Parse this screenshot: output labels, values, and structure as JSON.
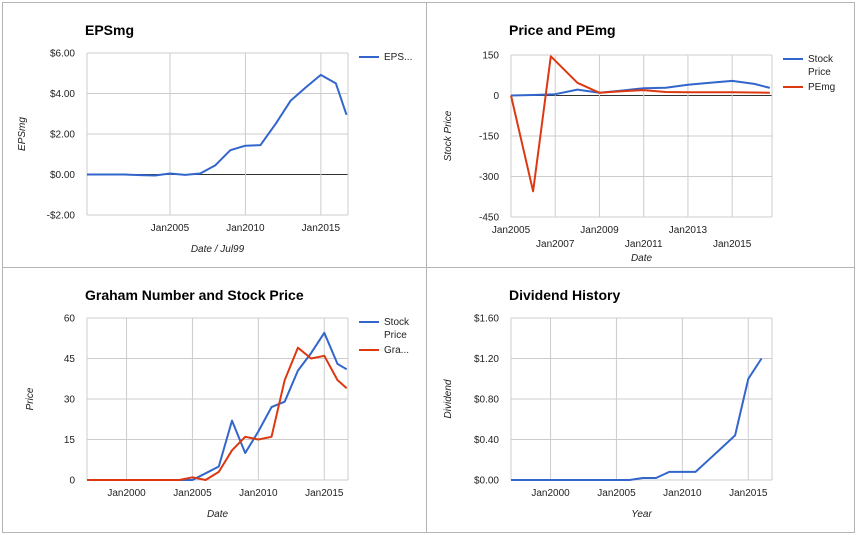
{
  "chart_data": [
    {
      "type": "line",
      "title": "EPSmg",
      "xlabel": "Date / Jul99",
      "ylabel": "EPSmg",
      "xlim": [
        1999.5,
        2016.8
      ],
      "ylim": [
        -2,
        6
      ],
      "yticks": [
        -2,
        0,
        2,
        4,
        6
      ],
      "ytick_labels": [
        "-$2.00",
        "$0.00",
        "$2.00",
        "$4.00",
        "$6.00"
      ],
      "xticks": [
        2005,
        2010,
        2015
      ],
      "xtick_labels": [
        "Jan2005",
        "Jan2010",
        "Jan2015"
      ],
      "legend_position": "right",
      "grid": true,
      "series": [
        {
          "name": "EPS...",
          "color": "#3366cc",
          "x": [
            1999.5,
            2001,
            2002,
            2003,
            2004,
            2005,
            2006,
            2007,
            2008,
            2009,
            2010,
            2011,
            2012,
            2013,
            2014,
            2015,
            2016,
            2016.7
          ],
          "y": [
            0,
            0,
            0,
            -0.03,
            -0.05,
            0.05,
            -0.02,
            0.05,
            0.45,
            1.2,
            1.42,
            1.45,
            2.5,
            3.65,
            4.3,
            4.92,
            4.5,
            2.95
          ]
        }
      ]
    },
    {
      "type": "line",
      "title": "Price and PEmg",
      "xlabel": "Date",
      "ylabel": "Stock Price",
      "xlim": [
        2005,
        2016.8
      ],
      "ylim": [
        -450,
        150
      ],
      "yticks": [
        -450,
        -300,
        -150,
        0,
        150
      ],
      "ytick_labels": [
        "-450",
        "-300",
        "-150",
        "0",
        "150"
      ],
      "xticks": [
        2005,
        2007,
        2009,
        2011,
        2013,
        2015
      ],
      "xtick_labels": [
        "Jan2005",
        "Jan2007",
        "Jan2009",
        "Jan2011",
        "Jan2013",
        "Jan2015"
      ],
      "legend_position": "right",
      "grid": true,
      "series": [
        {
          "name": "Stock Price",
          "color": "#3366cc",
          "x": [
            2005,
            2006,
            2007,
            2008,
            2009,
            2010,
            2011,
            2012,
            2013,
            2014,
            2015,
            2016,
            2016.7
          ],
          "y": [
            0,
            2,
            5,
            22,
            10,
            18,
            27,
            29,
            40,
            47,
            54,
            43,
            28
          ]
        },
        {
          "name": "PEmg",
          "color": "#dc3912",
          "x": [
            2005,
            2006,
            2006.8,
            2008,
            2009,
            2010,
            2011,
            2012,
            2013,
            2014,
            2015,
            2016,
            2016.7
          ],
          "y": [
            0,
            -355,
            145,
            47,
            10,
            16,
            20,
            13,
            12,
            12,
            12,
            11,
            10
          ]
        }
      ]
    },
    {
      "type": "line",
      "title": "Graham Number and Stock Price",
      "xlabel": "Date",
      "ylabel": "Price",
      "xlim": [
        1997,
        2016.8
      ],
      "ylim": [
        0,
        60
      ],
      "yticks": [
        0,
        15,
        30,
        45,
        60
      ],
      "ytick_labels": [
        "0",
        "15",
        "30",
        "45",
        "60"
      ],
      "xticks": [
        2000,
        2005,
        2010,
        2015
      ],
      "xtick_labels": [
        "Jan2000",
        "Jan2005",
        "Jan2010",
        "Jan2015"
      ],
      "legend_position": "right",
      "grid": true,
      "series": [
        {
          "name": "Stock Price",
          "color": "#3366cc",
          "x": [
            1997,
            2004,
            2005,
            2006,
            2007,
            2008,
            2009,
            2010,
            2011,
            2012,
            2013,
            2014,
            2015,
            2016,
            2016.7
          ],
          "y": [
            0,
            0,
            0,
            2.5,
            5,
            22,
            10,
            18,
            27,
            29,
            40.5,
            47,
            54.5,
            43,
            41
          ]
        },
        {
          "name": "Gra...",
          "color": "#dc3912",
          "x": [
            1997,
            2004,
            2005,
            2006,
            2007,
            2008,
            2009,
            2010,
            2011,
            2012,
            2013,
            2014,
            2015,
            2016,
            2016.7
          ],
          "y": [
            0,
            0,
            1,
            0,
            3,
            11,
            16,
            15,
            16,
            37,
            49,
            45,
            46,
            37,
            34
          ]
        }
      ]
    },
    {
      "type": "line",
      "title": "Dividend History",
      "xlabel": "Year",
      "ylabel": "Dividend",
      "xlim": [
        1997,
        2016.8
      ],
      "ylim": [
        0,
        1.6
      ],
      "yticks": [
        0,
        0.4,
        0.8,
        1.2,
        1.6
      ],
      "ytick_labels": [
        "$0.00",
        "$0.40",
        "$0.80",
        "$1.20",
        "$1.60"
      ],
      "xticks": [
        2000,
        2005,
        2010,
        2015
      ],
      "xtick_labels": [
        "Jan2000",
        "Jan2005",
        "Jan2010",
        "Jan2015"
      ],
      "legend_position": "none",
      "grid": true,
      "series": [
        {
          "name": "",
          "color": "#3366cc",
          "x": [
            1997,
            2005,
            2006,
            2007,
            2008,
            2009,
            2010,
            2011,
            2012,
            2013,
            2014,
            2015,
            2016
          ],
          "y": [
            0,
            0,
            0,
            0.02,
            0.02,
            0.08,
            0.08,
            0.08,
            0.2,
            0.32,
            0.44,
            1.0,
            1.2
          ]
        }
      ]
    }
  ]
}
